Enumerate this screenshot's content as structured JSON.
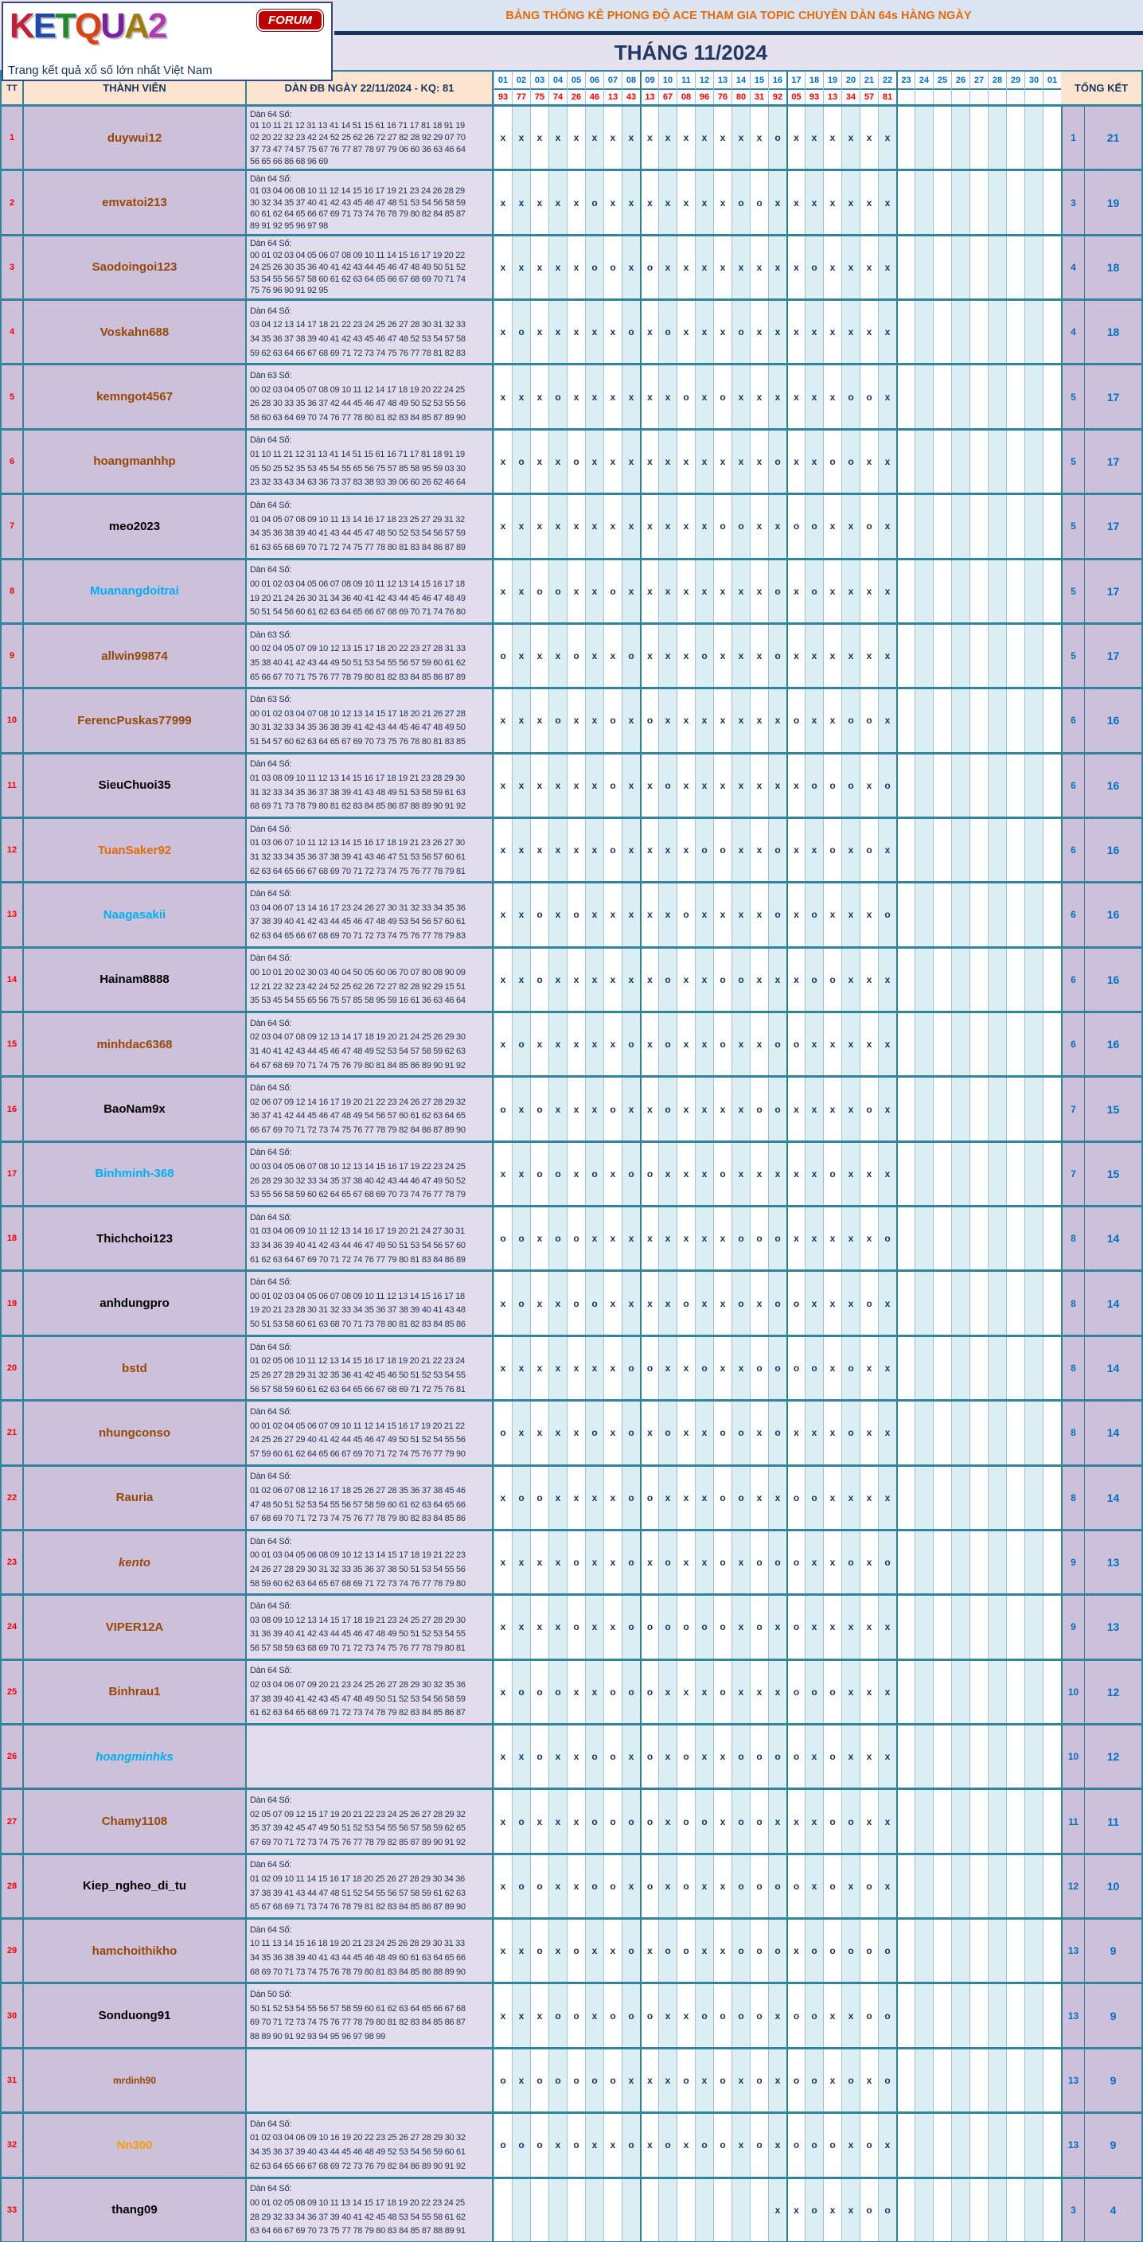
{
  "logo": {
    "letters": [
      {
        "ch": "K",
        "color": "#c41e3a"
      },
      {
        "ch": "E",
        "color": "#1f49b0"
      },
      {
        "ch": "T",
        "color": "#1e8a2e"
      },
      {
        "ch": "Q",
        "color": "#d84315"
      },
      {
        "ch": "U",
        "color": "#7b1fa2"
      },
      {
        "ch": "A",
        "color": "#9e7c0c"
      },
      {
        "ch": "2",
        "color": "#b03ab0"
      }
    ],
    "forum": "FORUM",
    "tagline": "Trang kết quả xổ số lớn nhất Việt Nam"
  },
  "banner": {
    "title": "BẢNG THỐNG KÊ PHONG ĐỘ ACE THAM GIA TOPIC CHUYÊN DÀN 64s HÀNG NGÀY",
    "month": "THÁNG 11/2024"
  },
  "colors": {
    "border_teal": "#31849b",
    "stripe_blue": "#daeef3",
    "mark_navy": "#17365d",
    "header_peach": "#fce4d0",
    "member_bg": "#ccc0da",
    "numbers_bg": "#e2dcec",
    "date_blue": "#0070c0",
    "result_red": "#ff0000",
    "banner_orange": "#e36c0a",
    "banner_bg": "#dbe5f1",
    "month_bg": "#e6e1ed",
    "page_bg": "#f3e3e3"
  },
  "table": {
    "headers": {
      "tt": "TT",
      "member": "THÀNH VIÊN",
      "dan": "DÀN ĐB NGÀY 22/11/2024 - KQ: 81",
      "tongket": "TỔNG KẾT"
    },
    "date_columns": [
      "01",
      "02",
      "03",
      "04",
      "05",
      "06",
      "07",
      "08",
      "09",
      "10",
      "11",
      "12",
      "13",
      "14",
      "15",
      "16",
      "17",
      "18",
      "19",
      "20",
      "21",
      "22",
      "23",
      "24",
      "25",
      "26",
      "27",
      "28",
      "29",
      "30",
      "01"
    ],
    "results": [
      "93",
      "77",
      "75",
      "74",
      "26",
      "46",
      "13",
      "43",
      "13",
      "67",
      "08",
      "96",
      "76",
      "80",
      "31",
      "92",
      "05",
      "93",
      "13",
      "34",
      "57",
      "81"
    ],
    "rows": [
      {
        "tt": "1",
        "name": "duywui12",
        "color": "#974806",
        "italic": false,
        "label": "Dàn 64 Số:",
        "lines": [
          "01 10 11 21 12 31 13 41 14 51 15 61 16 71 17 81 18 91 19",
          "02 20 22 32 23 42 24 52 25 62 26 72 27 82 28 92 29 07 70",
          "37 73 47 74 57 75 67 76 77 87 78 97 79 06 60 36 63 46 64",
          "56 65 66 86 68 96 69"
        ],
        "marks": "xxxxxxxxxxxxxxxoxxxxxx",
        "miss": "1",
        "hit": "21"
      },
      {
        "tt": "2",
        "name": "emvatoi213",
        "color": "#974806",
        "italic": false,
        "label": "Dàn 64 Số:",
        "lines": [
          "01 03 04 06 08 10 11 12 14 15 16 17 19 21 23 24 26 28 29",
          "30 32 34 35 37 40 41 42 43 45 46 47 48 51 53 54 56 58 59",
          "60 61 62 64 65 66 67 69 71 73 74 76 78 79 80 82 84 85 87",
          "89 91 92 95 96 97 98"
        ],
        "marks": "xxxxxoxxxxxxxooxxxxxxx",
        "miss": "3",
        "hit": "19"
      },
      {
        "tt": "3",
        "name": "Saodoingoi123",
        "color": "#974806",
        "italic": false,
        "label": "Dàn 64 Số:",
        "lines": [
          "00 01 02 03 04 05 06 07 08 09 10 11 14 15 16 17 19 20 22",
          "24 25 26 30 35 36 40 41 42 43 44 45 46 47 48 49 50 51 52",
          "53 54 55 56 57 58 60 61 62 63 64 65 66 67 68 69 70 71 74",
          "75 76 96 90 91 92 95"
        ],
        "marks": "xxxxxooxoxxxxxxxxoxxxx",
        "miss": "4",
        "hit": "18"
      },
      {
        "tt": "4",
        "name": "Voskahn688",
        "color": "#974806",
        "italic": false,
        "label": "Dàn 64 Số:",
        "lines": [
          "03 04 12 13 14 17 18 21 22 23 24 25 26 27 28 30 31 32 33",
          "34 35 36 37 38 39 40 41 42 43 45 46 47 48 52 53 54 57 58",
          "59 62 63 64 66 67 68 69 71 72 73 74 75 76 77 78 81 82 83"
        ],
        "marks": "xoxxxxxoxoxxxoxxxxxxxx",
        "miss": "4",
        "hit": "18"
      },
      {
        "tt": "5",
        "name": "kemngot4567",
        "color": "#974806",
        "italic": false,
        "label": "Dàn 63 Số:",
        "lines": [
          "00 02 03 04 05 07 08 09 10 11 12 14 17 18 19 20 22 24 25",
          "26 28 30 33 35 36 37 42 44 45 46 47 48 49 50 52 53 55 56",
          "58 60 63 64 69 70 74 76 77 78 80 81 82 83 84 85 87 89 90"
        ],
        "marks": "xxxoxxxxxxoxoxxxxxxoox",
        "miss": "5",
        "hit": "17"
      },
      {
        "tt": "6",
        "name": "hoangmanhhp",
        "color": "#974806",
        "italic": false,
        "label": "Dàn 64 Số:",
        "lines": [
          "01 10 11 21 12 31 13 41 14 51 15 61 16 71 17 81 18 91 19",
          "05 50 25 52 35 53 45 54 55 65 56 75 57 85 58 95 59 03 30",
          "23 32 33 43 34 63 36 73 37 83 38 93 39 06 60 26 62 46 64"
        ],
        "marks": "xoxxoxxxxxxxxxxoxxooxx",
        "miss": "5",
        "hit": "17"
      },
      {
        "tt": "7",
        "name": "meo2023",
        "color": "#000000",
        "italic": false,
        "label": "Dàn 64 Số:",
        "lines": [
          "01 04 05 07 08 09 10 11 13 14 16 17 18 23 25 27 29 31 32",
          "34 35 36 38 39 40 41 43 44 45 47 48 50 52 53 54 56 57 59",
          "61 63 65 68 69 70 71 72 74 75 77 78 80 81 83 84 86 87 89"
        ],
        "marks": "xxxxxxxxxxxxooxxooxxox",
        "miss": "5",
        "hit": "17"
      },
      {
        "tt": "8",
        "name": "Muanangdoitrai",
        "color": "#00b0f0",
        "italic": false,
        "label": "Dàn 64 Số:",
        "lines": [
          "00 01 02 03 04 05 06 07 08 09 10 11 12 13 14 15 16 17 18",
          "19 20 21 24 26 30 31 34 36 40 41 42 43 44 45 46 47 48 49",
          "50 51 54 56 60 61 62 63 64 65 66 67 68 69 70 71 74 76 80"
        ],
        "marks": "xxooxxoxxxxxxxxoxoxxxx",
        "miss": "5",
        "hit": "17"
      },
      {
        "tt": "9",
        "name": "allwin99874",
        "color": "#974806",
        "italic": false,
        "label": "Dàn 63 Số:",
        "lines": [
          "00 02 04 05 07 09 10 12 13 15 17 18 20 22 23 27 28 31 33",
          "35 38 40 41 42 43 44 49 50 51 53 54 55 56 57 59 60 61 62",
          "65 66 67 70 71 75 76 77 78 79 80 81 82 83 84 85 86 87 89"
        ],
        "marks": "oxxxoxxoxxxoxxxoxxxxxx",
        "miss": "5",
        "hit": "17"
      },
      {
        "tt": "10",
        "name": "FerencPuskas77999",
        "color": "#974806",
        "italic": false,
        "label": "Dàn 63 Số:",
        "lines": [
          "00 01 02 03 04 07 08 10 12 13 14 15 17 18 20 21 26 27 28",
          "30 31 32 33 34 35 36 38 39 41 42 43 44 45 46 47 48 49 50",
          "51 54 57 60 62 63 64 65 67 69 70 73 75 76 78 80 81 83 85"
        ],
        "marks": "xxxoxxoxoxxxxxxxoxxoox",
        "miss": "6",
        "hit": "16"
      },
      {
        "tt": "11",
        "name": "SieuChuoi35",
        "color": "#000000",
        "italic": false,
        "label": "Dàn 64 Số:",
        "lines": [
          "01 03 08 09 10 11 12 13 14 15 16 17 18 19 21 23 28 29 30",
          "31 32 33 34 35 36 37 38 39 41 43 48 49 51 53 58 59 61 63",
          "68 69 71 73 78 79 80 81 82 83 84 85 86 87 88 89 90 91 92"
        ],
        "marks": "xxxxxxoxxoxxxxxxxoooxo",
        "miss": "6",
        "hit": "16"
      },
      {
        "tt": "12",
        "name": "TuanSaker92",
        "color": "#e36c0a",
        "italic": false,
        "label": "Dàn 64 Số:",
        "lines": [
          "01 03 06 07 10 11 12 13 14 15 16 17 18 19 21 23 26 27 30",
          "31 32 33 34 35 36 37 38 39 41 43 46 47 51 53 56 57 60 61",
          "62 63 64 65 66 67 68 69 70 71 72 73 74 75 76 77 78 79 81"
        ],
        "marks": "xxxxxxoxxxxooxxoxxoxox",
        "miss": "6",
        "hit": "16"
      },
      {
        "tt": "13",
        "name": "Naagasakii",
        "color": "#00b0f0",
        "italic": false,
        "label": "Dàn 64 Số:",
        "lines": [
          "03 04 06 07 13 14 16 17 23 24 26 27 30 31 32 33 34 35 36",
          "37 38 39 40 41 42 43 44 45 46 47 48 49 53 54 56 57 60 61",
          "62 63 64 65 66 67 68 69 70 71 72 73 74 75 76 77 78 79 83"
        ],
        "marks": "xxoxoxxxxxoxxxxoxoxxxo",
        "miss": "6",
        "hit": "16"
      },
      {
        "tt": "14",
        "name": "Hainam8888",
        "color": "#000000",
        "italic": false,
        "label": "Dàn 64 Số:",
        "lines": [
          "00 10 01 20 02 30 03 40 04 50 05 60 06 70 07 80 08 90 09",
          "12 21 22 32 23 42 24 52 25 62 26 72 27 82 28 92 29 15 51",
          "35 53 45 54 55 65 56 75 57 85 58 95 59 16 61 36 63 46 64"
        ],
        "marks": "xxoxxxxxxoxxooxxxooxxx",
        "miss": "6",
        "hit": "16"
      },
      {
        "tt": "15",
        "name": "minhdac6368",
        "color": "#974806",
        "italic": false,
        "label": "Dàn 64 Số:",
        "lines": [
          "02 03 04 07 08 09 12 13 14 17 18 19 20 21 24 25 26 29 30",
          "31 40 41 42 43 44 45 46 47 48 49 52 53 54 57 58 59 62 63",
          "64 67 68 69 70 71 74 75 76 79 80 81 84 85 86 89 90 91 92"
        ],
        "marks": "xoxxxxxoxoxxoxxooxxxxx",
        "miss": "6",
        "hit": "16"
      },
      {
        "tt": "16",
        "name": "BaoNam9x",
        "color": "#000000",
        "italic": false,
        "label": "Dàn 64 Số:",
        "lines": [
          "02 06 07 09 12 14 16 17 19 20 21 22 23 24 26 27 28 29 32",
          "36 37 41 42 44 45 46 47 48 49 54 56 57 60 61 62 63 64 65",
          "66 67 69 70 71 72 73 74 75 76 77 78 79 82 84 86 87 89 90"
        ],
        "marks": "oxoxxxoxxoxxxxooxxxxox",
        "miss": "7",
        "hit": "15"
      },
      {
        "tt": "17",
        "name": "Binhminh-368",
        "color": "#00b0f0",
        "italic": false,
        "label": "Dàn 64 Số:",
        "lines": [
          "00 03 04 05 06 07 08 10 12 13 14 15 16 17 19 22 23 24 25",
          "26 28 29 30 32 33 34 35 37 38 40 42 43 44 46 47 49 50 52",
          "53 55 56 58 59 60 62 64 65 67 68 69 70 73 74 76 77 78 79"
        ],
        "marks": "xxooxoxooxxxoxxxxxoxxx",
        "miss": "7",
        "hit": "15"
      },
      {
        "tt": "18",
        "name": "Thichchoi123",
        "color": "#000000",
        "italic": false,
        "label": "Dàn 64 Số:",
        "lines": [
          "01 03 04 06 09 10 11 12 13 14 16 17 19 20 21 24 27 30 31",
          "33 34 36 39 40 41 42 43 44 46 47 49 50 51 53 54 56 57 60",
          "61 62 63 64 67 69 70 71 72 74 76 77 79 80 81 83 84 86 89"
        ],
        "marks": "ooxooxxxxxxxxoooxxxxxo",
        "miss": "8",
        "hit": "14"
      },
      {
        "tt": "19",
        "name": "anhdungpro",
        "color": "#000000",
        "italic": false,
        "label": "Dàn 64 Số:",
        "lines": [
          "00 01 02 03 04 05 06 07 08 09 10 11 12 13 14 15 16 17 18",
          "19 20 21 23 28 30 31 32 33 34 35 36 37 38 39 40 41 43 48",
          "50 51 53 58 60 61 63 68 70 71 73 78 80 81 82 83 84 85 86"
        ],
        "marks": "xoxxooxxxxoxxoxooxxxox",
        "miss": "8",
        "hit": "14"
      },
      {
        "tt": "20",
        "name": "bstd",
        "color": "#974806",
        "italic": false,
        "label": "Dàn 64 Số:",
        "lines": [
          "01 02 05 06 10 11 12 13 14 15 16 17 18 19 20 21 22 23 24",
          "25 26 27 28 29 31 32 35 36 41 42 45 46 50 51 52 53 54 55",
          "56 57 58 59 60 61 62 63 64 65 66 67 68 69 71 72 75 76 81"
        ],
        "marks": "xxxxxxxooxxoxxooooxoxx",
        "miss": "8",
        "hit": "14"
      },
      {
        "tt": "21",
        "name": "nhungconso",
        "color": "#974806",
        "italic": false,
        "label": "Dàn 64 Số:",
        "lines": [
          "00 01 02 04 05 06 07 09 10 11 12 14 15 16 17 19 20 21 22",
          "24 25 26 27 29 40 41 42 44 45 46 47 49 50 51 52 54 55 56",
          "57 59 60 61 62 64 65 66 67 69 70 71 72 74 75 76 77 79 90"
        ],
        "marks": "oxxxxoxoxoxxooxoxxxoxx",
        "miss": "8",
        "hit": "14"
      },
      {
        "tt": "22",
        "name": "Rauria",
        "color": "#974806",
        "italic": false,
        "label": "Dàn 64 Số:",
        "lines": [
          "01 02 06 07 08 12 16 17 18 25 26 27 28 35 36 37 38 45 46",
          "47 48 50 51 52 53 54 55 56 57 58 59 60 61 62 63 64 65 66",
          "67 68 69 70 71 72 73 74 75 76 77 78 79 80 82 83 84 85 86"
        ],
        "marks": "xooxxxxooxxxooxxooxxxx",
        "miss": "8",
        "hit": "14"
      },
      {
        "tt": "23",
        "name": "kento",
        "color": "#974806",
        "italic": true,
        "label": "Dàn 64 Số:",
        "lines": [
          "00 01 03 04 05 06 08 09 10 12 13 14 15 17 18 19 21 22 23",
          "24 26 27 28 29 30 31 32 33 35 36 37 38 50 51 53 54 55 56",
          "58 59 60 62 63 64 65 67 68 69 71 72 73 74 76 77 78 79 80"
        ],
        "marks": "xxxxoxxoxoxxoxoooxxoxo",
        "miss": "9",
        "hit": "13"
      },
      {
        "tt": "24",
        "name": "VIPER12A",
        "color": "#974806",
        "italic": false,
        "label": "Dàn 64 Số:",
        "lines": [
          "03 08 09 10 12 13 14 15 17 18 19 21 23 24 25 27 28 29 30",
          "31 36 39 40 41 42 43 44 45 46 47 48 49 50 51 52 53 54 55",
          "56 57 58 59 63 68 69 70 71 72 73 74 75 76 77 78 79 80 81"
        ],
        "marks": "xxxxoxxooooooxoxoxxxxx",
        "miss": "9",
        "hit": "13"
      },
      {
        "tt": "25",
        "name": "Binhrau1",
        "color": "#974806",
        "italic": false,
        "label": "Dàn 64 Số:",
        "lines": [
          "02 03 04 06 07 09 20 21 23 24 25 26 27 28 29 30 32 35 36",
          "37 38 39 40 41 42 43 45 47 48 49 50 51 52 53 54 56 58 59",
          "61 62 63 64 65 68 69 71 72 73 74 78 79 82 83 84 85 86 87"
        ],
        "marks": "xoooxxoooxxxoxxxoooxxx",
        "miss": "10",
        "hit": "12"
      },
      {
        "tt": "26",
        "name": "hoangminhks",
        "color": "#00b0f0",
        "italic": true,
        "label": "",
        "lines": [],
        "marks": "xxoxxooxoxoxxooooxoxxx",
        "miss": "10",
        "hit": "12"
      },
      {
        "tt": "27",
        "name": "Chamy1108",
        "color": "#974806",
        "italic": false,
        "label": "Dàn 64 Số:",
        "lines": [
          "02 05 07 09 12 15 17 19 20 21 22 23 24 25 26 27 28 29 32",
          "35 37 39 42 45 47 49 50 51 52 53 54 55 56 57 58 59 62 65",
          "67 69 70 71 72 73 74 75 76 77 78 79 82 85 87 89 90 91 92"
        ],
        "marks": "xoxxxooooxooxooxxxooxx",
        "miss": "11",
        "hit": "11"
      },
      {
        "tt": "28",
        "name": "Kiep_ngheo_di_tu",
        "color": "#000000",
        "italic": false,
        "label": "Dàn 64 Số:",
        "lines": [
          "01 02 09 10 11 14 15 16 17 18 20 25 26 27 28 29 30 34 36",
          "37 38 39 41 43 44 47 48 51 52 54 55 56 57 58 59 61 62 63",
          "65 67 68 69 71 73 74 76 78 79 81 82 83 84 85 86 87 89 90"
        ],
        "marks": "xooxxooxoxoxxooooxoxox",
        "miss": "12",
        "hit": "10"
      },
      {
        "tt": "29",
        "name": "hamchoithikho",
        "color": "#974806",
        "italic": false,
        "label": "Dàn 64 Số:",
        "lines": [
          "10 11 13 14 15 16 18 19 20 21 23 24 25 26 28 29 30 31 33",
          "34 35 36 38 39 40 41 43 44 45 46 48 49 60 61 63 64 65 66",
          "68 69 70 71 73 74 75 76 78 79 80 81 83 84 85 86 88 89 90"
        ],
        "marks": "xxoxoxxoxooxxoooxooooo",
        "miss": "13",
        "hit": "9"
      },
      {
        "tt": "30",
        "name": "Sonduong91",
        "color": "#000000",
        "italic": false,
        "label": "Dàn 50 Số:",
        "lines": [
          "50 51 52 53 54 55 56 57 58 59 60 61 62 63 64 65 66 67 68",
          "69 70 71 72 73 74 75 76 77 78 79 80 81 82 83 84 85 86 87",
          "88 89 90 91 92 93 94 95 96 97 98 99"
        ],
        "marks": "xxxooxoooxxooooxooxxoo",
        "miss": "13",
        "hit": "9"
      },
      {
        "tt": "31",
        "name": "mrdinh90",
        "color": "#974806",
        "italic": false,
        "small": true,
        "label": "",
        "lines": [],
        "marks": "oxoooooxxxoxoxoxooxoxo",
        "miss": "13",
        "hit": "9"
      },
      {
        "tt": "32",
        "name": "Nn300",
        "color": "#f2a104",
        "italic": false,
        "label": "Dàn 64 Số:",
        "lines": [
          "01 02 03 04 06 09 10 16 19 20 22 23 25 26 27 28 29 30 32",
          "34 35 36 37 39 40 43 44 45 46 48 49 52 53 54 56 59 60 61",
          "62 63 64 65 66 67 68 69 72 73 76 79 82 84 86 89 90 91 92"
        ],
        "marks": "oooxoxxoxoxooxoxoooxox",
        "miss": "13",
        "hit": "9"
      },
      {
        "tt": "33",
        "name": "thang09",
        "color": "#000000",
        "italic": false,
        "label": "Dàn 64 Số:",
        "lines": [
          "00 01 02 05 08 09 10 11 13 14 15 17 18 19 20 22 23 24 25",
          "28 29 32 33 34 36 37 39 40 41 42 45 48 53 54 55 58 61 62",
          "63 64 66 67 69 70 73 75 77 78 79 80 83 84 85 87 88 89 91"
        ],
        "marks": "               xxoxxoo",
        "miss": "3",
        "hit": "4"
      }
    ]
  }
}
